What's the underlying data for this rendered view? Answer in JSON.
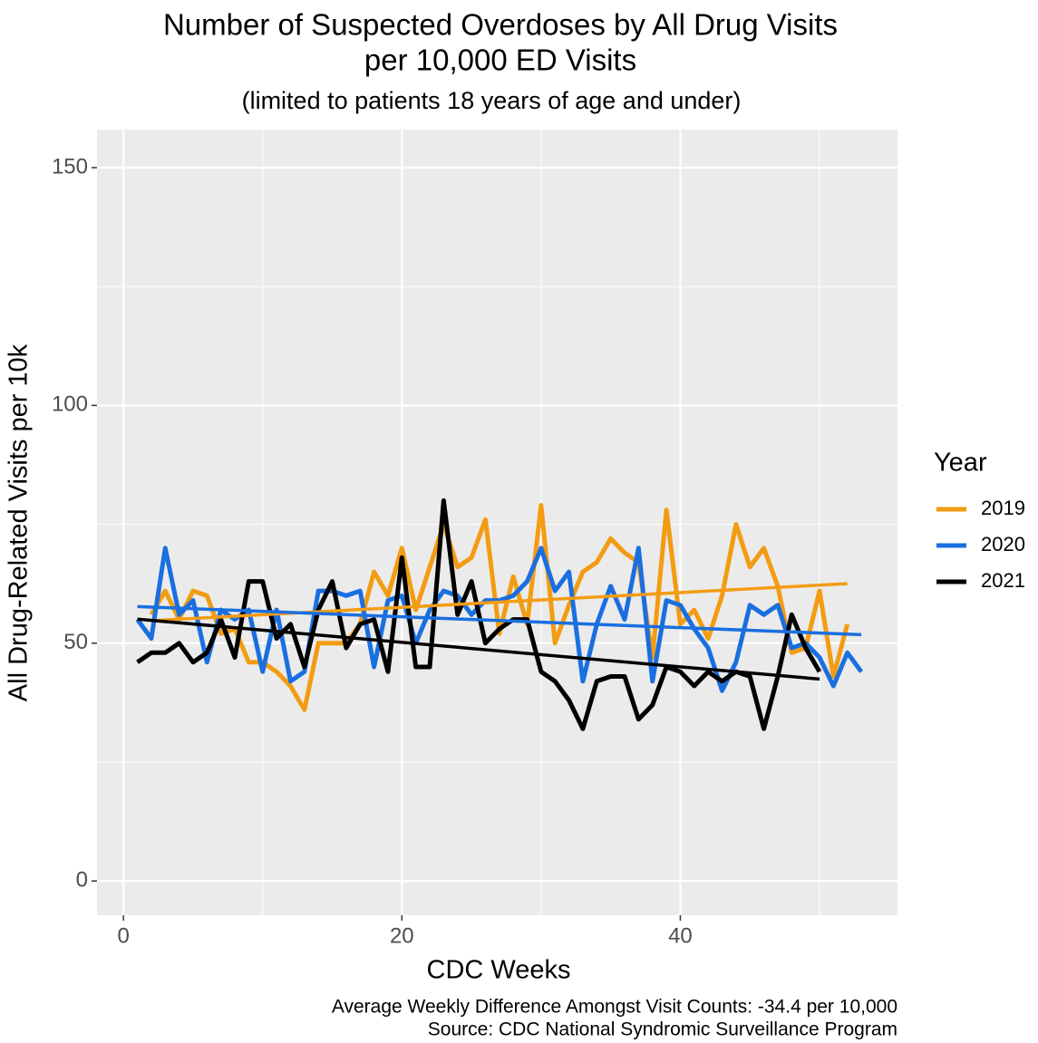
{
  "chart_data": {
    "type": "line",
    "title": [
      "Number of Suspected Overdoses by All Drug Visits",
      "per 10,000 ED Visits"
    ],
    "subtitle": "(limited to patients 18 years of age and under)",
    "x_label": "CDC Weeks",
    "y_label": "All Drug-Related Visits per 10k",
    "captions": [
      "Average Weekly Difference Amongst Visit Counts: -34.4 per 10,000",
      "Source: CDC National Syndromic Surveillance Program"
    ],
    "legend_title": "Year",
    "legend_position": "right",
    "grid": true,
    "trend_lines": true,
    "xlim": [
      -1.9,
      55.6
    ],
    "xticks": [
      0,
      20,
      40
    ],
    "ylim": [
      -7.2,
      158
    ],
    "yticks": [
      0,
      50,
      100,
      150
    ],
    "x": [
      1,
      2,
      3,
      4,
      5,
      6,
      7,
      8,
      9,
      10,
      11,
      12,
      13,
      14,
      15,
      16,
      17,
      18,
      19,
      20,
      21,
      22,
      23,
      24,
      25,
      26,
      27,
      28,
      29,
      30,
      31,
      32,
      33,
      34,
      35,
      36,
      37,
      38,
      39,
      40,
      41,
      42,
      43,
      44,
      45,
      46,
      47,
      48,
      49,
      50,
      51,
      52,
      53
    ],
    "series": [
      {
        "name": "2019",
        "color": "#f39c12",
        "values": [
          null,
          56,
          61,
          55,
          61,
          60,
          52,
          53,
          46,
          46,
          44,
          41,
          36,
          50,
          50,
          50,
          54,
          65,
          60,
          70,
          57,
          66,
          75,
          66,
          68,
          76,
          52,
          64,
          54,
          79,
          50,
          58,
          65,
          67,
          72,
          69,
          67,
          47,
          78,
          54,
          57,
          51,
          60,
          75,
          66,
          70,
          62,
          48,
          49,
          61,
          43,
          54,
          null
        ]
      },
      {
        "name": "2020",
        "color": "#1a6fe0",
        "values": [
          55,
          51,
          70,
          56,
          59,
          46,
          57,
          55,
          57,
          44,
          57,
          42,
          44,
          61,
          61,
          60,
          61,
          45,
          59,
          60,
          50,
          57,
          61,
          60,
          56,
          59,
          59,
          60,
          63,
          70,
          61,
          65,
          42,
          54,
          62,
          55,
          70,
          42,
          59,
          58,
          53,
          49,
          40,
          46,
          58,
          56,
          58,
          49,
          50,
          47,
          41,
          48,
          44
        ]
      },
      {
        "name": "2021",
        "color": "#000000",
        "values": [
          46,
          48,
          48,
          50,
          46,
          48,
          55,
          47,
          63,
          63,
          51,
          54,
          45,
          57,
          63,
          49,
          54,
          55,
          44,
          68,
          45,
          45,
          80,
          56,
          63,
          50,
          53,
          55,
          55,
          44,
          42,
          38,
          32,
          42,
          43,
          43,
          34,
          37,
          45,
          44,
          41,
          44,
          42,
          44,
          43,
          32,
          43,
          56,
          49,
          44,
          null,
          null,
          null
        ]
      }
    ]
  }
}
